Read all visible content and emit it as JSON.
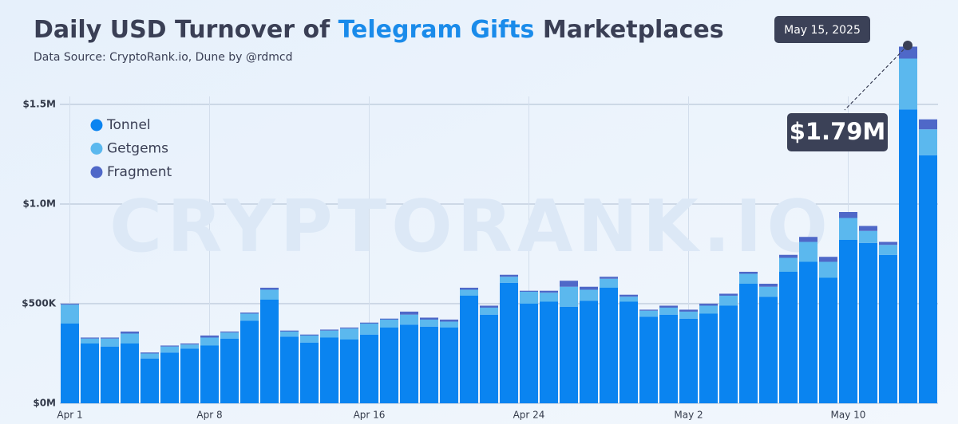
{
  "chart_data": {
    "type": "stacked-bar",
    "title_parts": [
      {
        "text": "Daily USD Turnover of ",
        "color": "#3a3f55"
      },
      {
        "text": "Telegram Gifts",
        "color": "#1a8bea"
      },
      {
        "text": " Marketplaces",
        "color": "#3a3f55"
      }
    ],
    "subtitle": "Data Source: CryptoRank.io, Dune by @rdmcd",
    "watermark": "CRYPTORANK.IO",
    "annotation": {
      "date": "May 15, 2025",
      "label": "$1.79M"
    },
    "categories": [
      "Apr 1",
      null,
      null,
      null,
      null,
      null,
      null,
      "Apr 8",
      null,
      null,
      null,
      null,
      null,
      null,
      null,
      "Apr 16",
      null,
      null,
      null,
      null,
      null,
      null,
      null,
      "Apr 24",
      null,
      null,
      null,
      null,
      null,
      null,
      null,
      "May 2",
      null,
      null,
      null,
      null,
      null,
      null,
      null,
      "May 10",
      null,
      null,
      null,
      null
    ],
    "series": [
      {
        "name": "Tonnel",
        "color": "#0a84f0",
        "values": [
          400000,
          300000,
          285000,
          300000,
          225000,
          255000,
          275000,
          290000,
          325000,
          415000,
          520000,
          335000,
          305000,
          330000,
          320000,
          345000,
          380000,
          395000,
          385000,
          380000,
          540000,
          445000,
          605000,
          500000,
          510000,
          485000,
          515000,
          580000,
          510000,
          435000,
          445000,
          425000,
          450000,
          490000,
          600000,
          535000,
          660000,
          710000,
          630000,
          820000,
          805000,
          745000,
          1475000,
          1245000
        ]
      },
      {
        "name": "Getgems",
        "color": "#5bb8ee",
        "values": [
          95000,
          25000,
          40000,
          50000,
          25000,
          30000,
          20000,
          40000,
          30000,
          35000,
          50000,
          25000,
          35000,
          35000,
          55000,
          55000,
          40000,
          50000,
          35000,
          30000,
          30000,
          35000,
          30000,
          60000,
          45000,
          100000,
          55000,
          45000,
          25000,
          30000,
          35000,
          35000,
          40000,
          50000,
          50000,
          50000,
          70000,
          100000,
          80000,
          110000,
          60000,
          50000,
          255000,
          130000
        ]
      },
      {
        "name": "Fragment",
        "color": "#4f68c8",
        "values": [
          5000,
          5000,
          5000,
          10000,
          5000,
          5000,
          5000,
          10000,
          5000,
          5000,
          10000,
          5000,
          5000,
          5000,
          5000,
          5000,
          5000,
          15000,
          10000,
          10000,
          10000,
          10000,
          10000,
          5000,
          10000,
          30000,
          15000,
          10000,
          10000,
          5000,
          10000,
          10000,
          10000,
          10000,
          10000,
          15000,
          15000,
          25000,
          25000,
          30000,
          25000,
          15000,
          60000,
          50000
        ]
      }
    ],
    "ylim": [
      0,
      1820000
    ],
    "yticks": [
      {
        "value": 0,
        "label": "$0M"
      },
      {
        "value": 500000,
        "label": "$500K"
      },
      {
        "value": 1000000,
        "label": "$1.0M"
      },
      {
        "value": 1500000,
        "label": "$1.5M"
      }
    ],
    "grid": true,
    "legend": "top-left"
  }
}
